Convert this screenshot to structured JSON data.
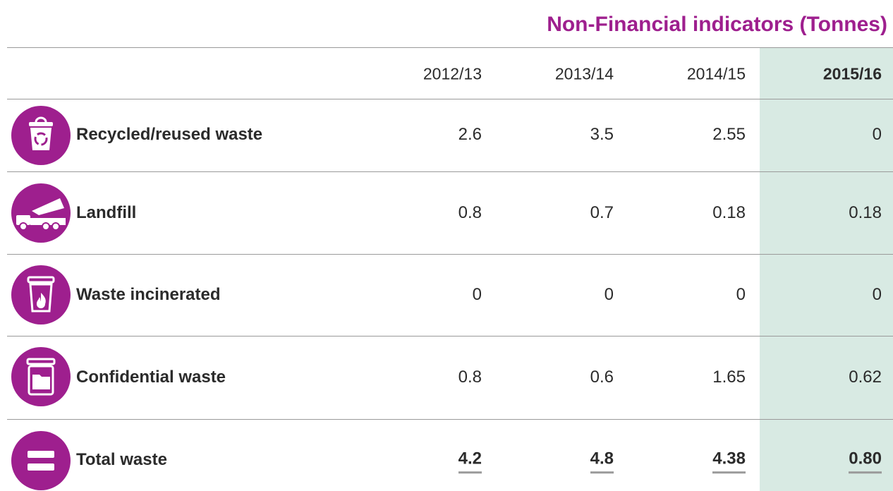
{
  "title": "Non-Financial indicators (Tonnes)",
  "table": {
    "columns": [
      "2012/13",
      "2013/14",
      "2014/15",
      "2015/16"
    ],
    "rows": [
      {
        "label": "Recycled/reused waste",
        "values": [
          "2.6",
          "3.5",
          "2.55",
          "0"
        ]
      },
      {
        "label": "Landfill",
        "values": [
          "0.8",
          "0.7",
          "0.18",
          "0.18"
        ]
      },
      {
        "label": "Waste incinerated",
        "values": [
          "0",
          "0",
          "0",
          "0"
        ]
      },
      {
        "label": "Confidential waste",
        "values": [
          "0.8",
          "0.6",
          "1.65",
          "0.62"
        ]
      },
      {
        "label": "Total waste",
        "values": [
          "4.2",
          "4.8",
          "4.38",
          "0.80"
        ]
      }
    ]
  }
}
